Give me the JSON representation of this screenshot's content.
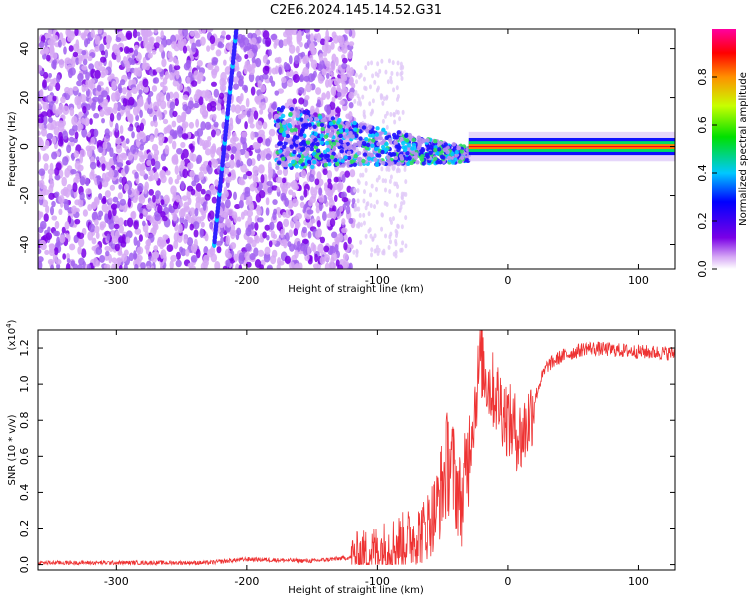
{
  "title": "C2E6.2024.145.14.52.G31",
  "chart_data": [
    {
      "type": "heatmap",
      "xlabel": "Height of straight line (km)",
      "ylabel": "Frequency (Hz)",
      "xlim": [
        -360,
        128
      ],
      "ylim": [
        -50,
        48
      ],
      "xticks": [
        -300,
        -200,
        -100,
        0,
        100
      ],
      "yticks": [
        -40,
        -20,
        0,
        20,
        40
      ],
      "colorbar": {
        "label": "Normalized spectral amplitude",
        "range": [
          0,
          1
        ],
        "ticks": [
          "0.0",
          "0.2",
          "0.4",
          "0.6",
          "0.8"
        ],
        "colors": [
          "#ffffff",
          "#d6a8f5",
          "#7a00e6",
          "#0000ff",
          "#00c8ff",
          "#00e000",
          "#c8ff00",
          "#ff9000",
          "#ff0000",
          "#ff00a0"
        ]
      },
      "features": [
        {
          "kind": "noise",
          "x_range": [
            -360,
            -118
          ],
          "f_range": [
            -50,
            48
          ]
        },
        {
          "kind": "meteor_streak",
          "x_range": [
            -225,
            -208
          ],
          "f_range": [
            -40,
            48
          ]
        },
        {
          "kind": "transition",
          "x_range": [
            -178,
            -30
          ],
          "f_range": [
            -12,
            12
          ]
        },
        {
          "kind": "carrier",
          "x_range": [
            -30,
            128
          ],
          "f_range": [
            -2,
            2
          ]
        }
      ]
    },
    {
      "type": "line",
      "xlabel": "Height of straight line (km)",
      "ylabel": "SNR (10 * v/v)",
      "yscale_label": "(x10",
      "yscale_exp": "4",
      "xlim": [
        -360,
        128
      ],
      "ylim": [
        -0.03,
        1.3
      ],
      "xticks": [
        -300,
        -200,
        -100,
        0,
        100
      ],
      "yticks": [
        "0.0",
        "0.2",
        "0.4",
        "0.6",
        "0.8",
        "1.0",
        "1.2"
      ],
      "series": [
        {
          "color": "#ee3333",
          "x": [
            -360,
            -300,
            -230,
            -200,
            -150,
            -120,
            -100,
            -80,
            -65,
            -55,
            -50,
            -45,
            -40,
            -35,
            -30,
            -25,
            -21,
            -15,
            -10,
            -5,
            0,
            5,
            10,
            15,
            20,
            25,
            30,
            40,
            60,
            80,
            100,
            128
          ],
          "y": [
            0.01,
            0.01,
            0.01,
            0.03,
            0.02,
            0.04,
            0.08,
            0.13,
            0.18,
            0.3,
            0.45,
            0.6,
            0.45,
            0.33,
            0.65,
            0.9,
            1.15,
            1.0,
            0.95,
            0.88,
            0.8,
            0.75,
            0.7,
            0.78,
            0.9,
            1.02,
            1.1,
            1.15,
            1.2,
            1.19,
            1.18,
            1.17
          ]
        }
      ]
    }
  ]
}
